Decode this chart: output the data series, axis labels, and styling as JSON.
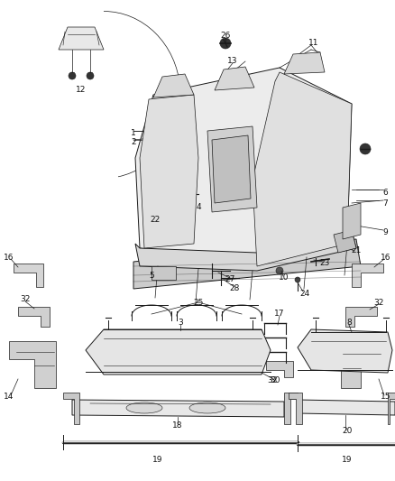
{
  "bg_color": "#ffffff",
  "line_color": "#1a1a1a",
  "label_color": "#111111",
  "label_fontsize": 6.5,
  "fig_width": 4.38,
  "fig_height": 5.33,
  "dpi": 100
}
